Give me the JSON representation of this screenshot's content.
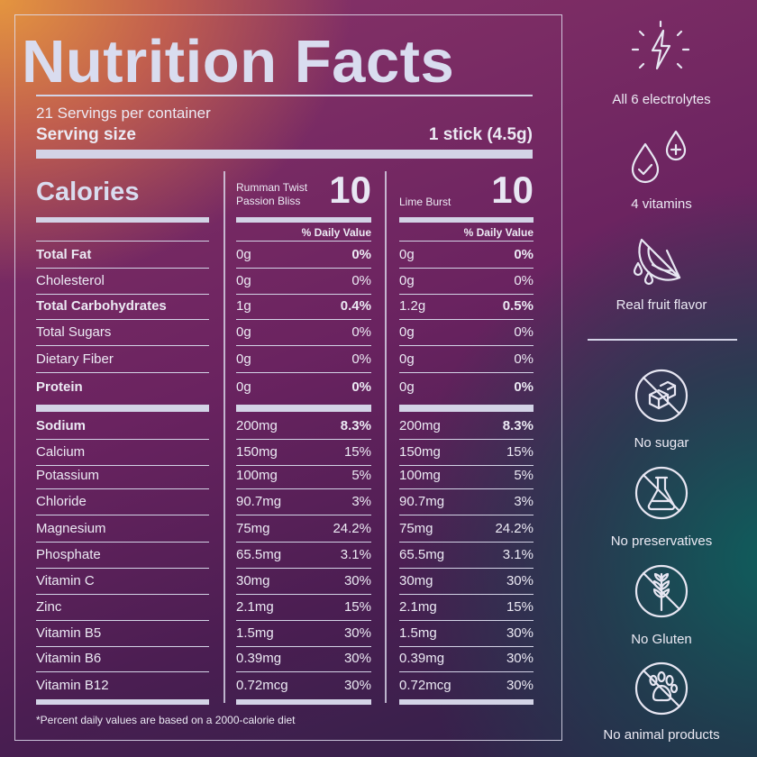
{
  "panel": {
    "title": "Nutrition Facts",
    "servings": "21 Servings per container",
    "serving_size_label": "Serving size",
    "serving_size_value": "1 stick (4.5g)",
    "calories_label": "Calories",
    "flavor1": {
      "name_line1": "Rumman Twist",
      "name_line2": "Passion Bliss",
      "calories": "10"
    },
    "flavor2": {
      "name": "Lime Burst",
      "calories": "10"
    },
    "daily_value_header": "% Daily Value",
    "footnote": "*Percent daily values are based on a 2000-calorie diet",
    "group1": [
      {
        "name": "Total Fat",
        "bold": true,
        "a1": "0g",
        "p1": "0%",
        "a2": "0g",
        "p2": "0%"
      },
      {
        "name": "Cholesterol",
        "bold": false,
        "a1": "0g",
        "p1": "0%",
        "a2": "0g",
        "p2": "0%"
      },
      {
        "name": "Total Carbohydrates",
        "bold": true,
        "a1": "1g",
        "p1": "0.4%",
        "a2": "1.2g",
        "p2": "0.5%"
      },
      {
        "name": "Total Sugars",
        "bold": false,
        "a1": "0g",
        "p1": "0%",
        "a2": "0g",
        "p2": "0%"
      },
      {
        "name": "Dietary Fiber",
        "bold": false,
        "a1": "0g",
        "p1": "0%",
        "a2": "0g",
        "p2": "0%"
      },
      {
        "name": "Protein",
        "bold": true,
        "a1": "0g",
        "p1": "0%",
        "a2": "0g",
        "p2": "0%"
      }
    ],
    "group2": [
      {
        "name": "Sodium",
        "bold": true,
        "a1": "200mg",
        "p1": "8.3%",
        "a2": "200mg",
        "p2": "8.3%"
      },
      {
        "name": "Calcium",
        "bold": false,
        "a1": "150mg",
        "p1": "15%",
        "a2": "150mg",
        "p2": "15%"
      },
      {
        "name": "Potassium",
        "bold": false,
        "a1": "100mg",
        "p1": "5%",
        "a2": "100mg",
        "p2": "5%"
      },
      {
        "name": "Chloride",
        "bold": false,
        "a1": "90.7mg",
        "p1": "3%",
        "a2": "90.7mg",
        "p2": "3%"
      },
      {
        "name": "Magnesium",
        "bold": false,
        "a1": "75mg",
        "p1": "24.2%",
        "a2": "75mg",
        "p2": "24.2%"
      },
      {
        "name": "Phosphate",
        "bold": false,
        "a1": "65.5mg",
        "p1": "3.1%",
        "a2": "65.5mg",
        "p2": "3.1%"
      },
      {
        "name": "Vitamin C",
        "bold": false,
        "a1": "30mg",
        "p1": "30%",
        "a2": "30mg",
        "p2": "30%"
      },
      {
        "name": "Zinc",
        "bold": false,
        "a1": "2.1mg",
        "p1": "15%",
        "a2": "2.1mg",
        "p2": "15%"
      },
      {
        "name": "Vitamin B5",
        "bold": false,
        "a1": "1.5mg",
        "p1": "30%",
        "a2": "1.5mg",
        "p2": "30%"
      },
      {
        "name": "Vitamin B6",
        "bold": false,
        "a1": "0.39mg",
        "p1": "30%",
        "a2": "0.39mg",
        "p2": "30%"
      },
      {
        "name": "Vitamin B12",
        "bold": false,
        "a1": "0.72mcg",
        "p1": "30%",
        "a2": "0.72mcg",
        "p2": "30%"
      }
    ]
  },
  "features": [
    {
      "icon": "lightning-icon",
      "label": "All 6 electrolytes"
    },
    {
      "icon": "drops-icon",
      "label": "4 vitamins"
    },
    {
      "icon": "citrus-icon",
      "label": "Real fruit flavor"
    },
    {
      "icon": "no-sugar-icon",
      "label": "No sugar"
    },
    {
      "icon": "no-preservatives-icon",
      "label": "No preservatives"
    },
    {
      "icon": "no-gluten-icon",
      "label": "No Gluten"
    },
    {
      "icon": "no-animal-icon",
      "label": "No animal products"
    }
  ]
}
